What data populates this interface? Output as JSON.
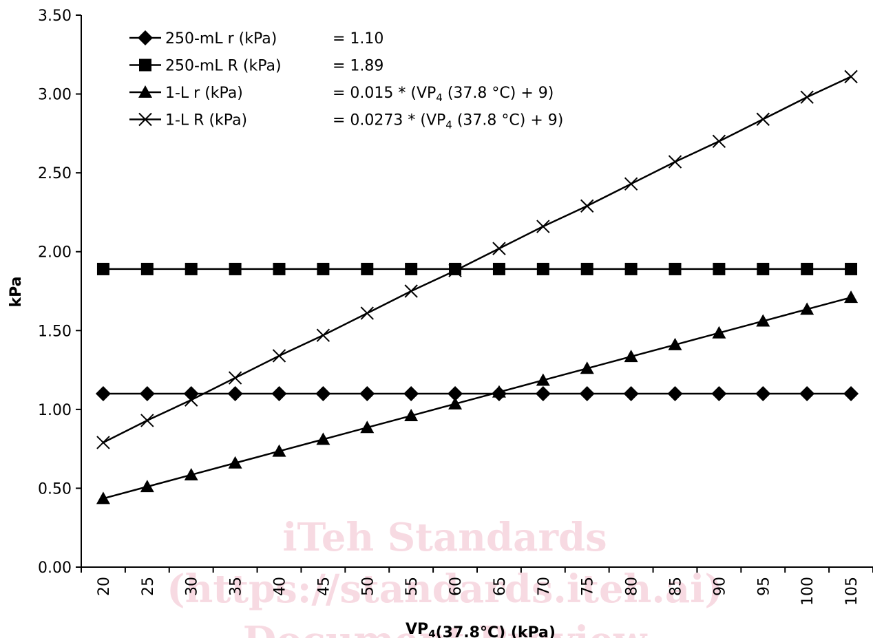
{
  "chart_data": {
    "type": "line",
    "xlabel": "VP₄(37.8°C) (kPa)",
    "ylabel": "kPa",
    "categories": [
      "20",
      "25",
      "30",
      "35",
      "40",
      "45",
      "50",
      "55",
      "60",
      "65",
      "70",
      "75",
      "80",
      "85",
      "90",
      "95",
      "100",
      "105"
    ],
    "x": [
      20,
      25,
      30,
      35,
      40,
      45,
      50,
      55,
      60,
      65,
      70,
      75,
      80,
      85,
      90,
      95,
      100,
      105
    ],
    "y_ticks": [
      "0.00",
      "0.50",
      "1.00",
      "1.50",
      "2.00",
      "2.50",
      "3.00",
      "3.50"
    ],
    "ylim": [
      0,
      3.5
    ],
    "grid": false,
    "legend_position": "top-left",
    "series": [
      {
        "name": "250-mL r (kPa)",
        "formula": "= 1.10",
        "marker": "diamond",
        "values": [
          1.1,
          1.1,
          1.1,
          1.1,
          1.1,
          1.1,
          1.1,
          1.1,
          1.1,
          1.1,
          1.1,
          1.1,
          1.1,
          1.1,
          1.1,
          1.1,
          1.1,
          1.1
        ]
      },
      {
        "name": "250-mL R (kPa)",
        "formula": "= 1.89",
        "marker": "square",
        "values": [
          1.89,
          1.89,
          1.89,
          1.89,
          1.89,
          1.89,
          1.89,
          1.89,
          1.89,
          1.89,
          1.89,
          1.89,
          1.89,
          1.89,
          1.89,
          1.89,
          1.89,
          1.89
        ]
      },
      {
        "name": "1-L r (kPa)",
        "formula": "= 0.015 * (VP₄ (37.8 °C) + 9)",
        "marker": "triangle",
        "values": [
          0.435,
          0.51,
          0.585,
          0.66,
          0.735,
          0.81,
          0.885,
          0.96,
          1.035,
          1.11,
          1.185,
          1.26,
          1.335,
          1.41,
          1.485,
          1.56,
          1.635,
          1.71
        ]
      },
      {
        "name": "1-L R (kPa)",
        "formula": "= 0.0273 * (VP₄ (37.8 °C) + 9)",
        "marker": "x",
        "values": [
          0.79,
          0.93,
          1.06,
          1.2,
          1.34,
          1.47,
          1.61,
          1.75,
          1.88,
          2.02,
          2.16,
          2.29,
          2.43,
          2.57,
          2.7,
          2.84,
          2.98,
          3.11
        ]
      }
    ]
  },
  "watermark": {
    "line1": "iTeh Standards",
    "line2": "(https://standards.iteh.ai)",
    "line3": "Document Preview",
    "color": "#f4c7d3"
  }
}
